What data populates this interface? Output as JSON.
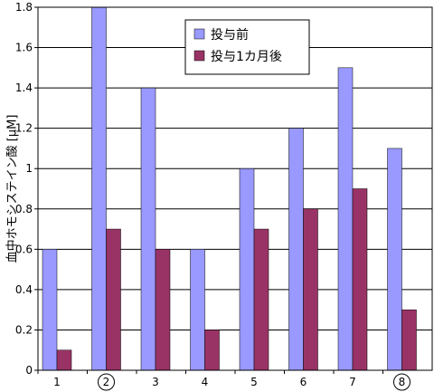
{
  "chart_data": {
    "type": "bar",
    "categories": [
      "1",
      "2",
      "3",
      "4",
      "5",
      "6",
      "7",
      "8"
    ],
    "circled_categories": [
      "2",
      "8"
    ],
    "series": [
      {
        "name": "投与前",
        "color": "#9999ff",
        "values": [
          0.6,
          1.8,
          1.4,
          0.6,
          1.0,
          1.2,
          1.5,
          1.1
        ]
      },
      {
        "name": "投与1カ月後",
        "color": "#993366",
        "values": [
          0.1,
          0.7,
          0.6,
          0.2,
          0.7,
          0.8,
          0.9,
          0.3
        ]
      }
    ],
    "ylabel": "血中ホモシステイン酸 [μM]",
    "ylim": [
      0,
      1.8
    ],
    "yticks": [
      "0",
      "0.2",
      "0.4",
      "0.6",
      "0.8",
      "1",
      "1.2",
      "1.4",
      "1.6",
      "1.8"
    ],
    "grid": true,
    "legend_position": "top-center"
  }
}
